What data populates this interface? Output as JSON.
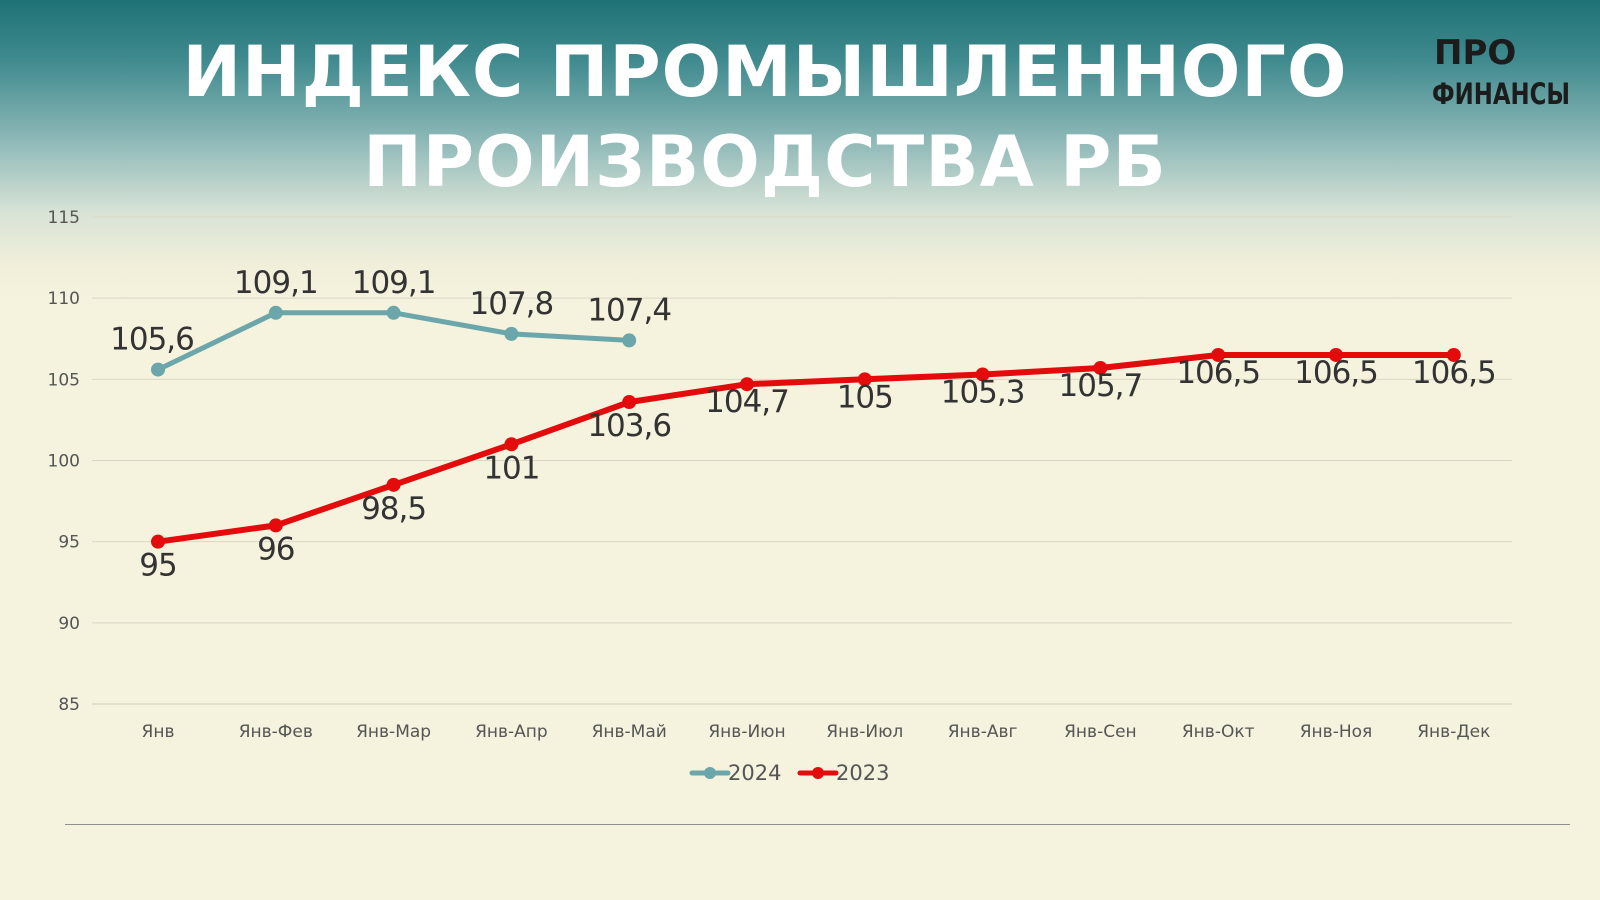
{
  "header": {
    "title_line1": "ИНДЕКС ПРОМЫШЛЕННОГО",
    "title_line2": "ПРОИЗВОДСТВА РБ",
    "logo_line1": "ПРО",
    "logo_line2": "ФИНАНСЫ"
  },
  "chart_data": {
    "type": "line",
    "title": "ИНДЕКС ПРОМЫШЛЕННОГО ПРОИЗВОДСТВА РБ",
    "categories": [
      "Янв",
      "Янв-Фев",
      "Янв-Мар",
      "Янв-Апр",
      "Янв-Май",
      "Янв-Июн",
      "Янв-Июл",
      "Янв-Авг",
      "Янв-Сен",
      "Янв-Окт",
      "Янв-Ноя",
      "Янв-Дек"
    ],
    "ylim": [
      85,
      115
    ],
    "yticks": [
      85,
      90,
      95,
      100,
      105,
      110,
      115
    ],
    "grid": true,
    "legend": "bottom",
    "series": [
      {
        "name": "2024",
        "color": "#6aa6aa",
        "values": [
          105.6,
          109.1,
          109.1,
          107.8,
          107.4,
          null,
          null,
          null,
          null,
          null,
          null,
          null
        ],
        "labels": [
          "105,6",
          "109,1",
          "109,1",
          "107,8",
          "107,4",
          "",
          "",
          "",
          "",
          "",
          "",
          ""
        ]
      },
      {
        "name": "2023",
        "color": "#e30b0b",
        "values": [
          95,
          96,
          98.5,
          101,
          103.6,
          104.7,
          105,
          105.3,
          105.7,
          106.5,
          106.5,
          106.5
        ],
        "labels": [
          "95",
          "96",
          "98,5",
          "101",
          "103,6",
          "104,7",
          "105",
          "105,3",
          "105,7",
          "106,5",
          "106,5",
          "106,5"
        ]
      }
    ]
  }
}
